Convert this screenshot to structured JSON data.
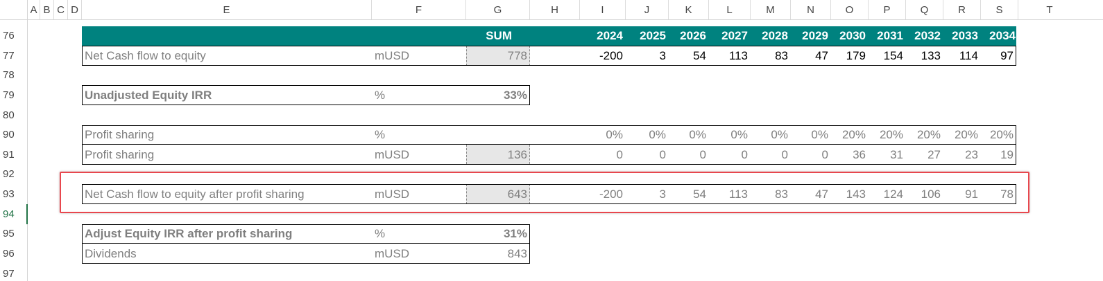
{
  "columns": [
    "A",
    "B",
    "C",
    "D",
    "E",
    "F",
    "G",
    "H",
    "I",
    "J",
    "K",
    "L",
    "M",
    "N",
    "O",
    "P",
    "Q",
    "R",
    "S",
    "T"
  ],
  "rows": [
    "76",
    "77",
    "78",
    "79",
    "80",
    "90",
    "91",
    "92",
    "93",
    "94",
    "95",
    "96",
    "97"
  ],
  "header_row": {
    "sum_label": "SUM",
    "years": [
      "2024",
      "2025",
      "2026",
      "2027",
      "2028",
      "2029",
      "2030",
      "2031",
      "2032",
      "2033",
      "2034"
    ]
  },
  "net_cf": {
    "label": "Net Cash flow to equity",
    "unit": "mUSD",
    "sum": "778",
    "values": [
      "-200",
      "3",
      "54",
      "113",
      "83",
      "47",
      "179",
      "154",
      "133",
      "114",
      "97"
    ]
  },
  "unadj_irr": {
    "label": "Unadjusted Equity IRR",
    "unit": "%",
    "value": "33%"
  },
  "ps_pct": {
    "label": "Profit sharing",
    "unit": "%",
    "values": [
      "0%",
      "0%",
      "0%",
      "0%",
      "0%",
      "0%",
      "20%",
      "20%",
      "20%",
      "20%",
      "20%"
    ]
  },
  "ps_musd": {
    "label": "Profit sharing",
    "unit": "mUSD",
    "sum": "136",
    "values": [
      "0",
      "0",
      "0",
      "0",
      "0",
      "0",
      "36",
      "31",
      "27",
      "23",
      "19"
    ]
  },
  "net_after": {
    "label": "Net Cash flow to equity after profit sharing",
    "unit": "mUSD",
    "sum": "643",
    "values": [
      "-200",
      "3",
      "54",
      "113",
      "83",
      "47",
      "143",
      "124",
      "106",
      "91",
      "78"
    ]
  },
  "adj_irr": {
    "label": "Adjust Equity IRR after profit sharing",
    "unit": "%",
    "value": "31%"
  },
  "dividends": {
    "label": "Dividends",
    "unit": "mUSD",
    "value": "843"
  },
  "colors": {
    "header_teal": "#00827f",
    "highlight_red": "#e8474e",
    "sum_fill": "#e7e7e7",
    "selected_row": "#217346"
  }
}
